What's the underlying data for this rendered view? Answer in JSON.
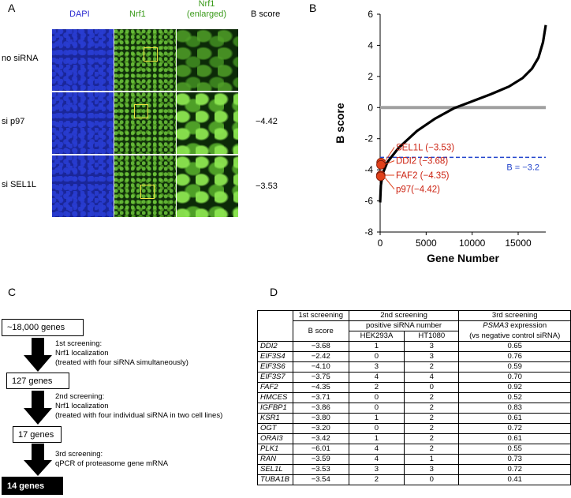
{
  "panel_a": {
    "letter": "A",
    "columns": [
      "DAPI",
      "Nrf1",
      "Nrf1\n(enlarged)",
      "B score"
    ],
    "rows": [
      {
        "label": "no siRNA",
        "bscore": ""
      },
      {
        "label": "si p97",
        "bscore": "−4.42"
      },
      {
        "label": "si SEL1L",
        "bscore": "−3.53"
      }
    ],
    "colors": {
      "dapi_label": "#2a2ad0",
      "nrf1_label": "#3a9a1a"
    }
  },
  "panel_b": {
    "letter": "B",
    "chart_data": {
      "type": "scatter",
      "xlabel": "Gene Number",
      "ylabel": "B score",
      "xlim": [
        0,
        18000
      ],
      "ylim": [
        -8,
        6
      ],
      "xticks": [
        "0",
        "5000",
        "10000",
        "15000"
      ],
      "yticks": [
        "6",
        "4",
        "2",
        "0",
        "-2",
        "-4",
        "-6",
        "-8"
      ],
      "curve": [
        [
          0,
          -6.1
        ],
        [
          80,
          -5.0
        ],
        [
          300,
          -4.2
        ],
        [
          800,
          -3.5
        ],
        [
          2000,
          -2.6
        ],
        [
          4000,
          -1.5
        ],
        [
          6000,
          -0.7
        ],
        [
          8000,
          -0.05
        ],
        [
          10000,
          0.4
        ],
        [
          12000,
          0.85
        ],
        [
          14000,
          1.35
        ],
        [
          15500,
          1.9
        ],
        [
          16500,
          2.5
        ],
        [
          17200,
          3.2
        ],
        [
          17700,
          4.2
        ],
        [
          18000,
          5.3
        ]
      ],
      "zero_line": 0,
      "threshold": {
        "value": -3.2,
        "label": "B = −3.2"
      },
      "highlights": [
        {
          "label": "SEL1L (−3.53)",
          "x": 100,
          "y": -3.53
        },
        {
          "label": "DDI2 (−3.68)",
          "x": 90,
          "y": -3.68
        },
        {
          "label": "FAF2 (−4.35)",
          "x": 70,
          "y": -4.35
        },
        {
          "label": "p97(−4.42)",
          "x": 60,
          "y": -4.42
        }
      ],
      "colors": {
        "curve": "#000000",
        "zero_line": "#a0a0a0",
        "threshold": "#2244cc",
        "highlight": "#e0401a",
        "highlight_text": "#cc2211"
      }
    }
  },
  "panel_c": {
    "letter": "C",
    "boxes": [
      "~18,000 genes",
      "127 genes",
      "17 genes",
      "14 genes"
    ],
    "steps": [
      [
        "1st screening:",
        "Nrf1 localization",
        "(treated with four siRNA simultaneously)"
      ],
      [
        "2nd screening:",
        "Nrf1 localization",
        "(treated with four individual siRNA in two cell lines)"
      ],
      [
        "3rd screening:",
        "qPCR of proteasome gene mRNA"
      ]
    ]
  },
  "panel_d": {
    "letter": "D",
    "header1": [
      "1st screening",
      "2nd screening",
      "3rd screening"
    ],
    "header2": [
      "B score",
      "positive siRNA number",
      "PSMA3",
      " expression"
    ],
    "header3": [
      "HEK293A",
      "HT1080",
      "(vs negative control siRNA)"
    ],
    "rows": [
      [
        "DDI2",
        "−3.68",
        "1",
        "3",
        "0.65"
      ],
      [
        "EIF3S4",
        "−2.42",
        "0",
        "3",
        "0.76"
      ],
      [
        "EIF3S6",
        "−4.10",
        "3",
        "2",
        "0.59"
      ],
      [
        "EIF3S7",
        "−3.75",
        "4",
        "4",
        "0.70"
      ],
      [
        "FAF2",
        "−4.35",
        "2",
        "0",
        "0.92"
      ],
      [
        "HMCES",
        "−3.71",
        "0",
        "2",
        "0.52"
      ],
      [
        "IGFBP1",
        "−3.86",
        "0",
        "2",
        "0.83"
      ],
      [
        "KSR1",
        "−3.80",
        "1",
        "2",
        "0.61"
      ],
      [
        "OGT",
        "−3.20",
        "0",
        "2",
        "0.72"
      ],
      [
        "ORAI3",
        "−3.42",
        "1",
        "2",
        "0.61"
      ],
      [
        "PLK1",
        "−6.01",
        "4",
        "2",
        "0.55"
      ],
      [
        "RAN",
        "−3.59",
        "4",
        "1",
        "0.73"
      ],
      [
        "SEL1L",
        "−3.53",
        "3",
        "3",
        "0.72"
      ],
      [
        "TUBA1B",
        "−3.54",
        "2",
        "0",
        "0.41"
      ]
    ]
  }
}
